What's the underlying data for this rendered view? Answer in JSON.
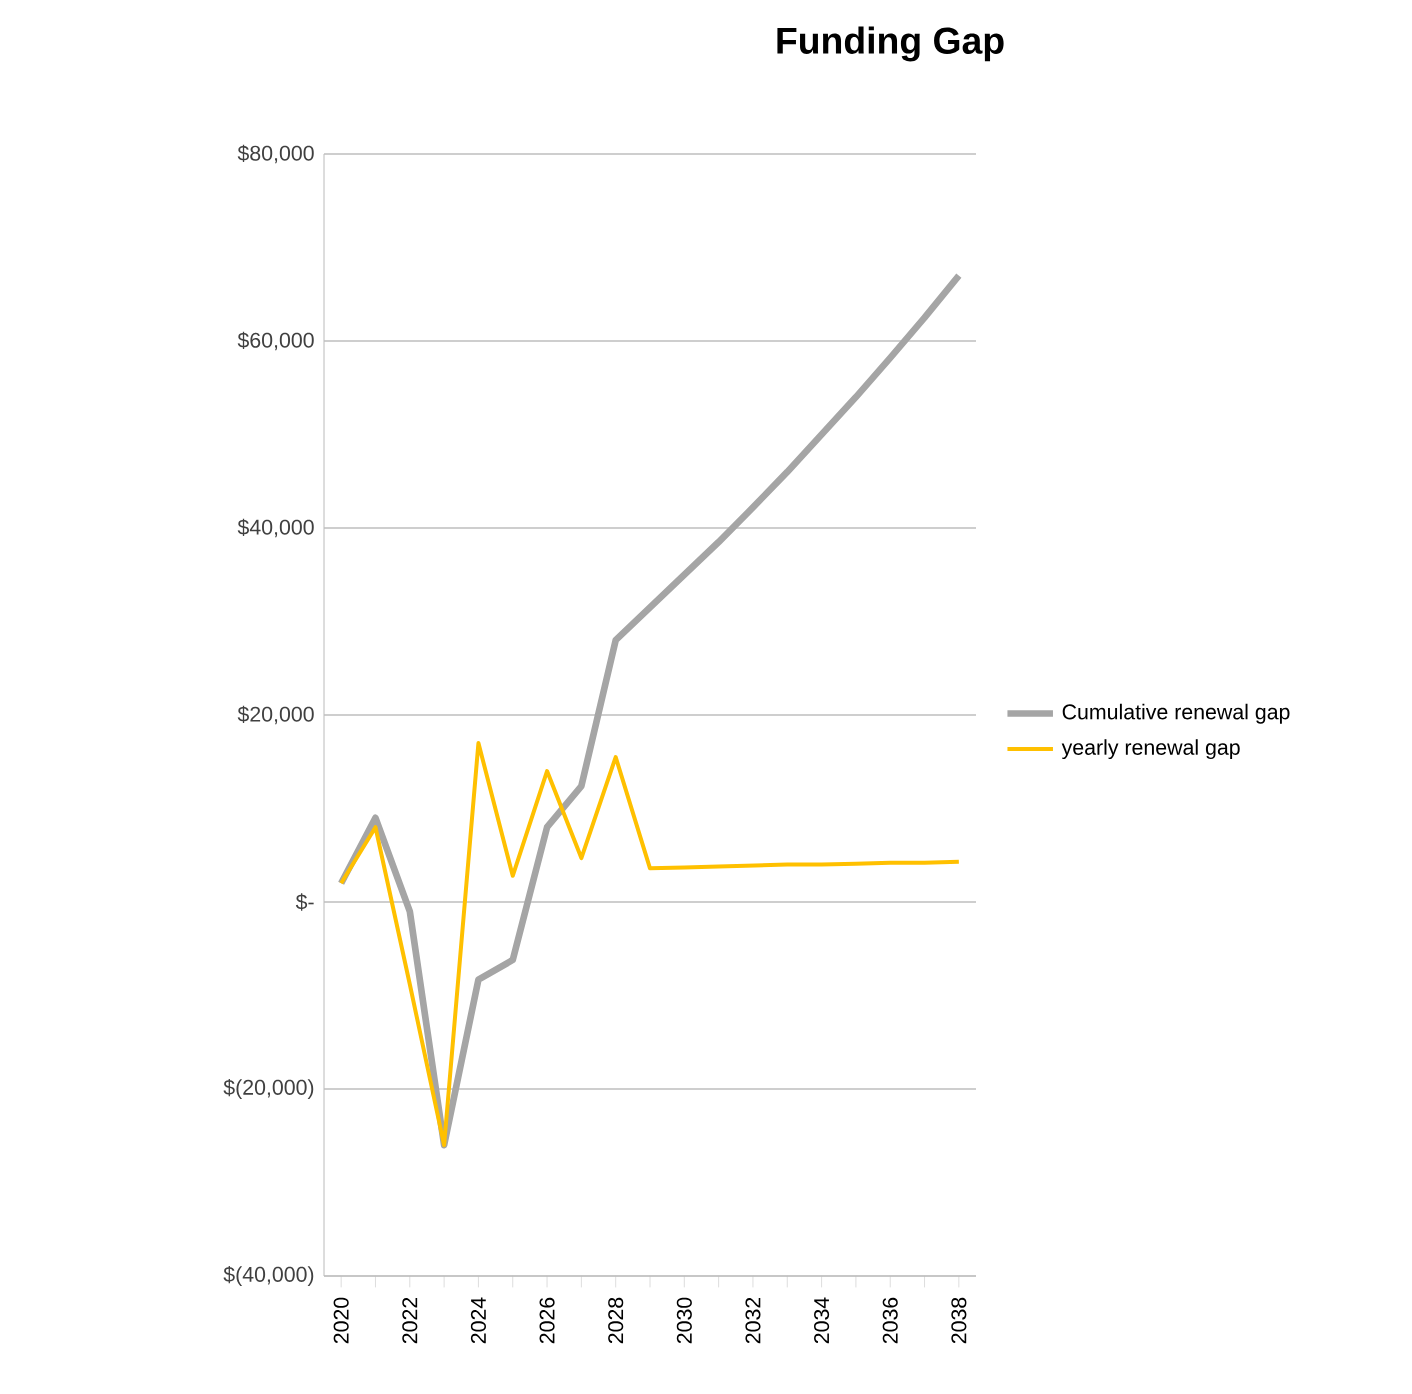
{
  "chart_data": {
    "type": "line",
    "title": "Funding Gap",
    "categories": [
      "2020",
      null,
      "2022",
      null,
      "2024",
      null,
      "2026",
      null,
      "2028",
      null,
      "2030",
      null,
      "2032",
      null,
      "2034",
      null,
      "2036",
      null,
      "2038"
    ],
    "series": [
      {
        "name": "Cumulative renewal gap",
        "color": "#a5a5a5",
        "values": [
          2000,
          9000,
          -1000,
          -26000,
          -8300,
          -6200,
          8000,
          12400,
          28000,
          31500,
          35000,
          38500,
          42200,
          46000,
          50000,
          54000,
          58200,
          62500,
          67000
        ]
      },
      {
        "name": "yearly renewal gap",
        "color": "#ffc000",
        "values": [
          2000,
          8000,
          -8800,
          -26000,
          17000,
          2800,
          14000,
          4700,
          15500,
          3600,
          3700,
          3800,
          3900,
          4000,
          4000,
          4100,
          4200,
          4200,
          4300
        ]
      }
    ],
    "ylim": [
      -40000,
      80000
    ],
    "yticks": [
      {
        "value": -40000,
        "label": "$(40,000)"
      },
      {
        "value": -20000,
        "label": "$(20,000)"
      },
      {
        "value": 0,
        "label": "$-"
      },
      {
        "value": 20000,
        "label": "$20,000"
      },
      {
        "value": 40000,
        "label": "$40,000"
      },
      {
        "value": 60000,
        "label": "$60,000"
      },
      {
        "value": 80000,
        "label": "$80,000"
      }
    ],
    "grid": "y",
    "legend": "right",
    "marker": "none",
    "line_style": "solid"
  }
}
